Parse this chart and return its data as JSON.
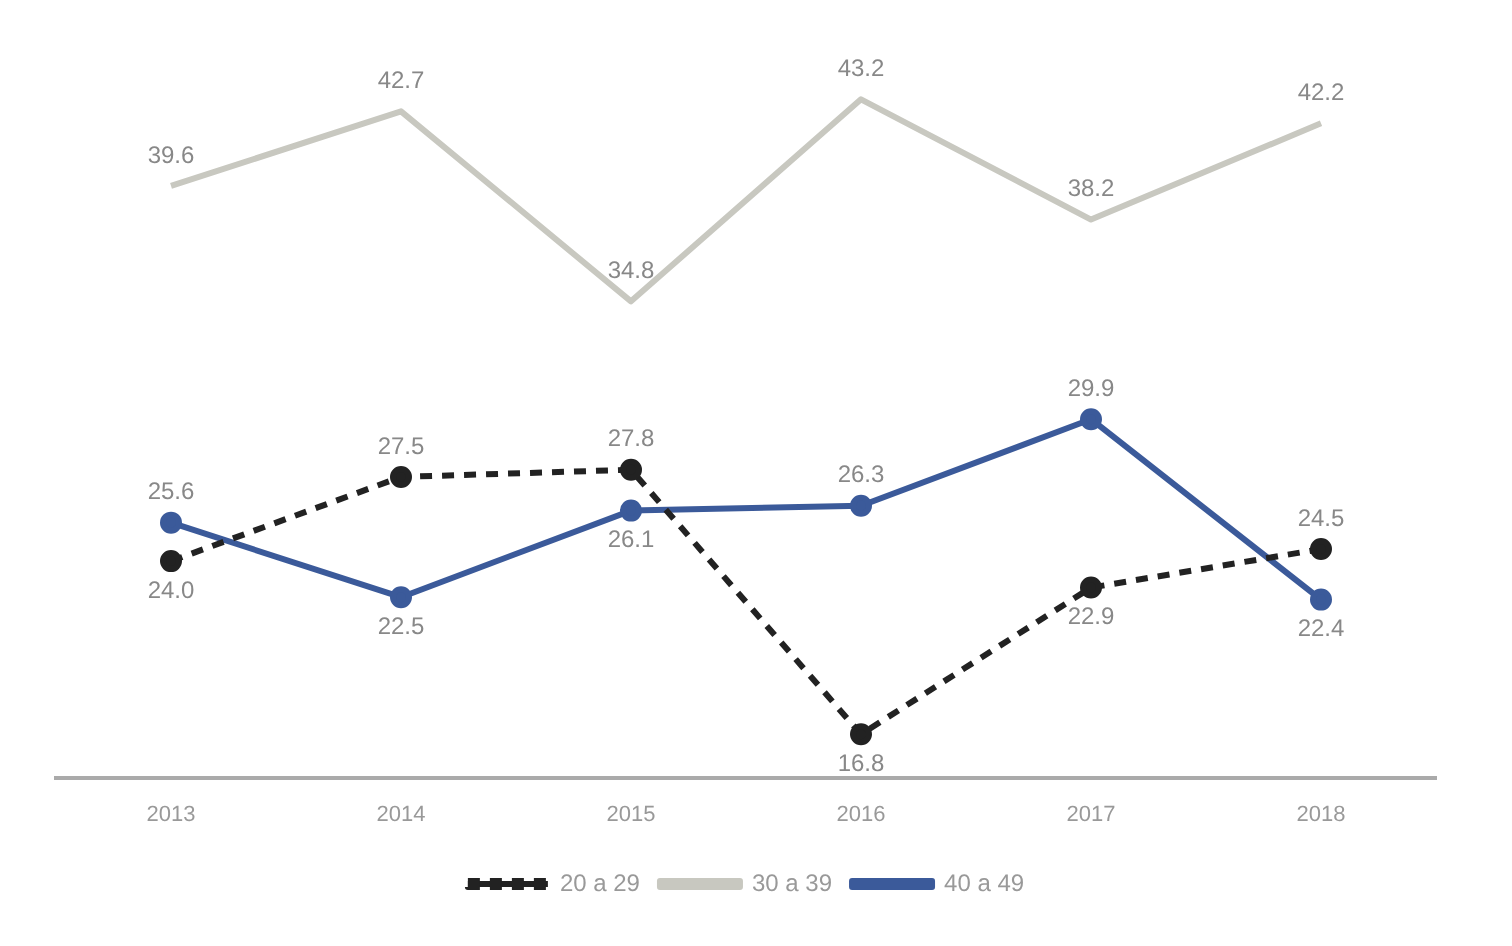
{
  "chart_data": {
    "type": "line",
    "categories": [
      "2013",
      "2014",
      "2015",
      "2016",
      "2017",
      "2018"
    ],
    "series": [
      {
        "name": "20 a 29",
        "color": "#222222",
        "values": [
          24.0,
          27.5,
          27.8,
          16.8,
          22.9,
          24.5
        ],
        "value_labels": [
          "24.0",
          "27.5",
          "27.8",
          "16.8",
          "22.9",
          "24.5"
        ],
        "line_style": "dashed",
        "marker": "circle"
      },
      {
        "name": "30 a 39",
        "color": "#c8c8c0",
        "values": [
          39.6,
          42.7,
          34.8,
          43.2,
          38.2,
          42.2
        ],
        "value_labels": [
          "39.6",
          "42.7",
          "34.8",
          "43.2",
          "38.2",
          "42.2"
        ],
        "line_style": "solid",
        "marker": "none"
      },
      {
        "name": "40 a 49",
        "color": "#3b5a9a",
        "values": [
          25.6,
          22.5,
          26.1,
          26.3,
          29.9,
          22.4
        ],
        "value_labels": [
          "25.6",
          "22.5",
          "26.1",
          "26.3",
          "29.9",
          "22.4"
        ],
        "line_style": "solid",
        "marker": "circle"
      }
    ],
    "legend": "bottom",
    "grid": false,
    "tick_labels": "x"
  }
}
